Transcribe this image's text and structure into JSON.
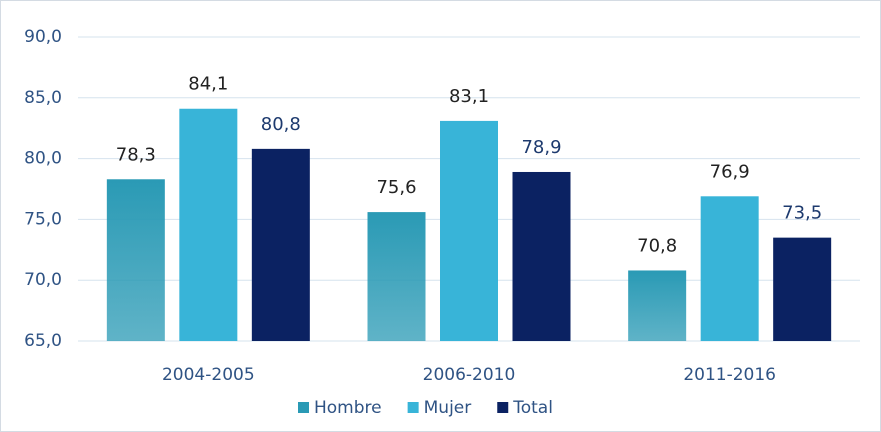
{
  "chart_data": {
    "type": "bar",
    "categories": [
      "2004-2005",
      "2006-2010",
      "2011-2016"
    ],
    "series": [
      {
        "name": "Hombre",
        "color": "#2a9ab5",
        "values": [
          78.3,
          75.6,
          70.8
        ],
        "value_labels": [
          "78,3",
          "75,6",
          "70,8"
        ]
      },
      {
        "name": "Mujer",
        "color": "#38b4d8",
        "values": [
          84.1,
          83.1,
          76.9
        ],
        "value_labels": [
          "84,1",
          "83,1",
          "76,9"
        ]
      },
      {
        "name": "Total",
        "color": "#0b2262",
        "values": [
          80.8,
          78.9,
          73.5
        ],
        "value_labels": [
          "80,8",
          "78,9",
          "73,5"
        ]
      }
    ],
    "ylim": [
      65,
      90
    ],
    "yticks": [
      {
        "value": 65,
        "label": "65,0"
      },
      {
        "value": 70,
        "label": "70,0"
      },
      {
        "value": 75,
        "label": "75,0"
      },
      {
        "value": 80,
        "label": "80,0"
      },
      {
        "value": 85,
        "label": "85,0"
      },
      {
        "value": 90,
        "label": "90,0"
      }
    ],
    "grid": true,
    "legend": "bottom"
  }
}
